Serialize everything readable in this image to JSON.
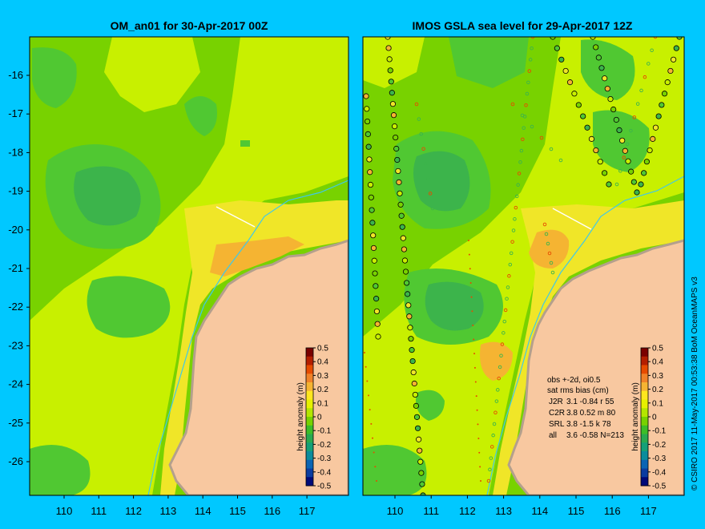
{
  "left_panel": {
    "title": "OM_an01 for 30-Apr-2017 00Z",
    "colorbar_label": "height anomaly (m)"
  },
  "right_panel": {
    "title": "IMOS GSLA sea level  for 29-Apr-2017 12Z",
    "colorbar_label": "height anomaly (m)",
    "stats": {
      "line1": "obs +-2d, oi0.5",
      "line2": "sat rms bias (cm)",
      "rows": [
        {
          "sat": "J2R",
          "vals": "3.1 -0.84 r 55"
        },
        {
          "sat": "C2R",
          "vals": "3.8 0.52 m 80"
        },
        {
          "sat": "SRL",
          "vals": "3.8 -1.5 k 78"
        },
        {
          "sat": "all",
          "vals": "3.6 -0.58 N=213"
        }
      ]
    }
  },
  "axes": {
    "lon_ticks": [
      "110",
      "111",
      "112",
      "113",
      "114",
      "115",
      "116",
      "117"
    ],
    "lat_ticks": [
      "-16",
      "-17",
      "-18",
      "-19",
      "-20",
      "-21",
      "-22",
      "-23",
      "-24",
      "-25",
      "-26"
    ]
  },
  "colorbar": {
    "ticks": [
      "0.5",
      "0.4",
      "0.3",
      "0.2",
      "0.1",
      "0",
      "-0.1",
      "-0.2",
      "-0.3",
      "-0.4",
      "-0.5"
    ],
    "colors": [
      "#7a0000",
      "#b41e00",
      "#e64b00",
      "#f08228",
      "#f5b432",
      "#ffe61e",
      "#e6f000",
      "#b4e600",
      "#78d200",
      "#3cbe28",
      "#28aa50",
      "#14a078",
      "#0a8c9c",
      "#0a64b4",
      "#0a3ca0",
      "#000a78"
    ]
  },
  "map_colors": {
    "land": "#f8c8a0",
    "land_edge": "#b4a08c",
    "background": "#00c8ff",
    "shelf_line": "#40c8e8",
    "level_very_low": "#3cb44b",
    "level_low": "#50c832",
    "level_zero": "#78d200",
    "level_pos": "#c8f000",
    "level_high": "#f0e628",
    "level_higher": "#f5b432"
  },
  "credit": "© CSIRO 2017   11-May-2017 00:53:38 BoM OceanMAPS v3"
}
